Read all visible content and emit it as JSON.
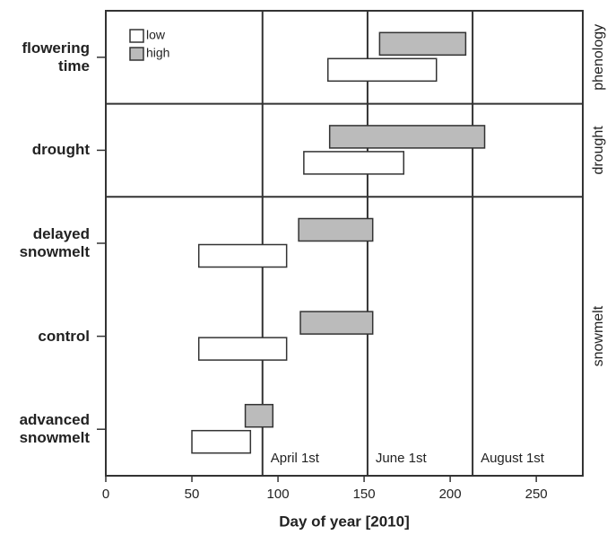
{
  "chart_data": {
    "type": "range_bar",
    "xlabel": "Day of year [2010]",
    "xlim": [
      0,
      277
    ],
    "xticks": [
      0,
      50,
      100,
      150,
      200,
      250
    ],
    "categories": [
      "flowering time",
      "drought",
      "delayed snowmelt",
      "control",
      "advanced snowmelt"
    ],
    "panels": [
      {
        "label": "phenology",
        "categories": [
          0
        ]
      },
      {
        "label": "drought",
        "categories": [
          1
        ]
      },
      {
        "label": "snowmelt",
        "categories": [
          2,
          3,
          4
        ]
      }
    ],
    "series": [
      {
        "name": "low",
        "color": "#ffffff",
        "values": [
          [
            129,
            192
          ],
          [
            115,
            173
          ],
          [
            54,
            105
          ],
          [
            54,
            105
          ],
          [
            50,
            84
          ]
        ]
      },
      {
        "name": "high",
        "color": "#bbbbbb",
        "values": [
          [
            159,
            209
          ],
          [
            130,
            220
          ],
          [
            112,
            155
          ],
          [
            113,
            155
          ],
          [
            81,
            97
          ]
        ]
      }
    ],
    "reference_lines": [
      {
        "value": 91,
        "label": "April 1st"
      },
      {
        "value": 152,
        "label": "June 1st"
      },
      {
        "value": 213,
        "label": "August 1st"
      }
    ]
  }
}
